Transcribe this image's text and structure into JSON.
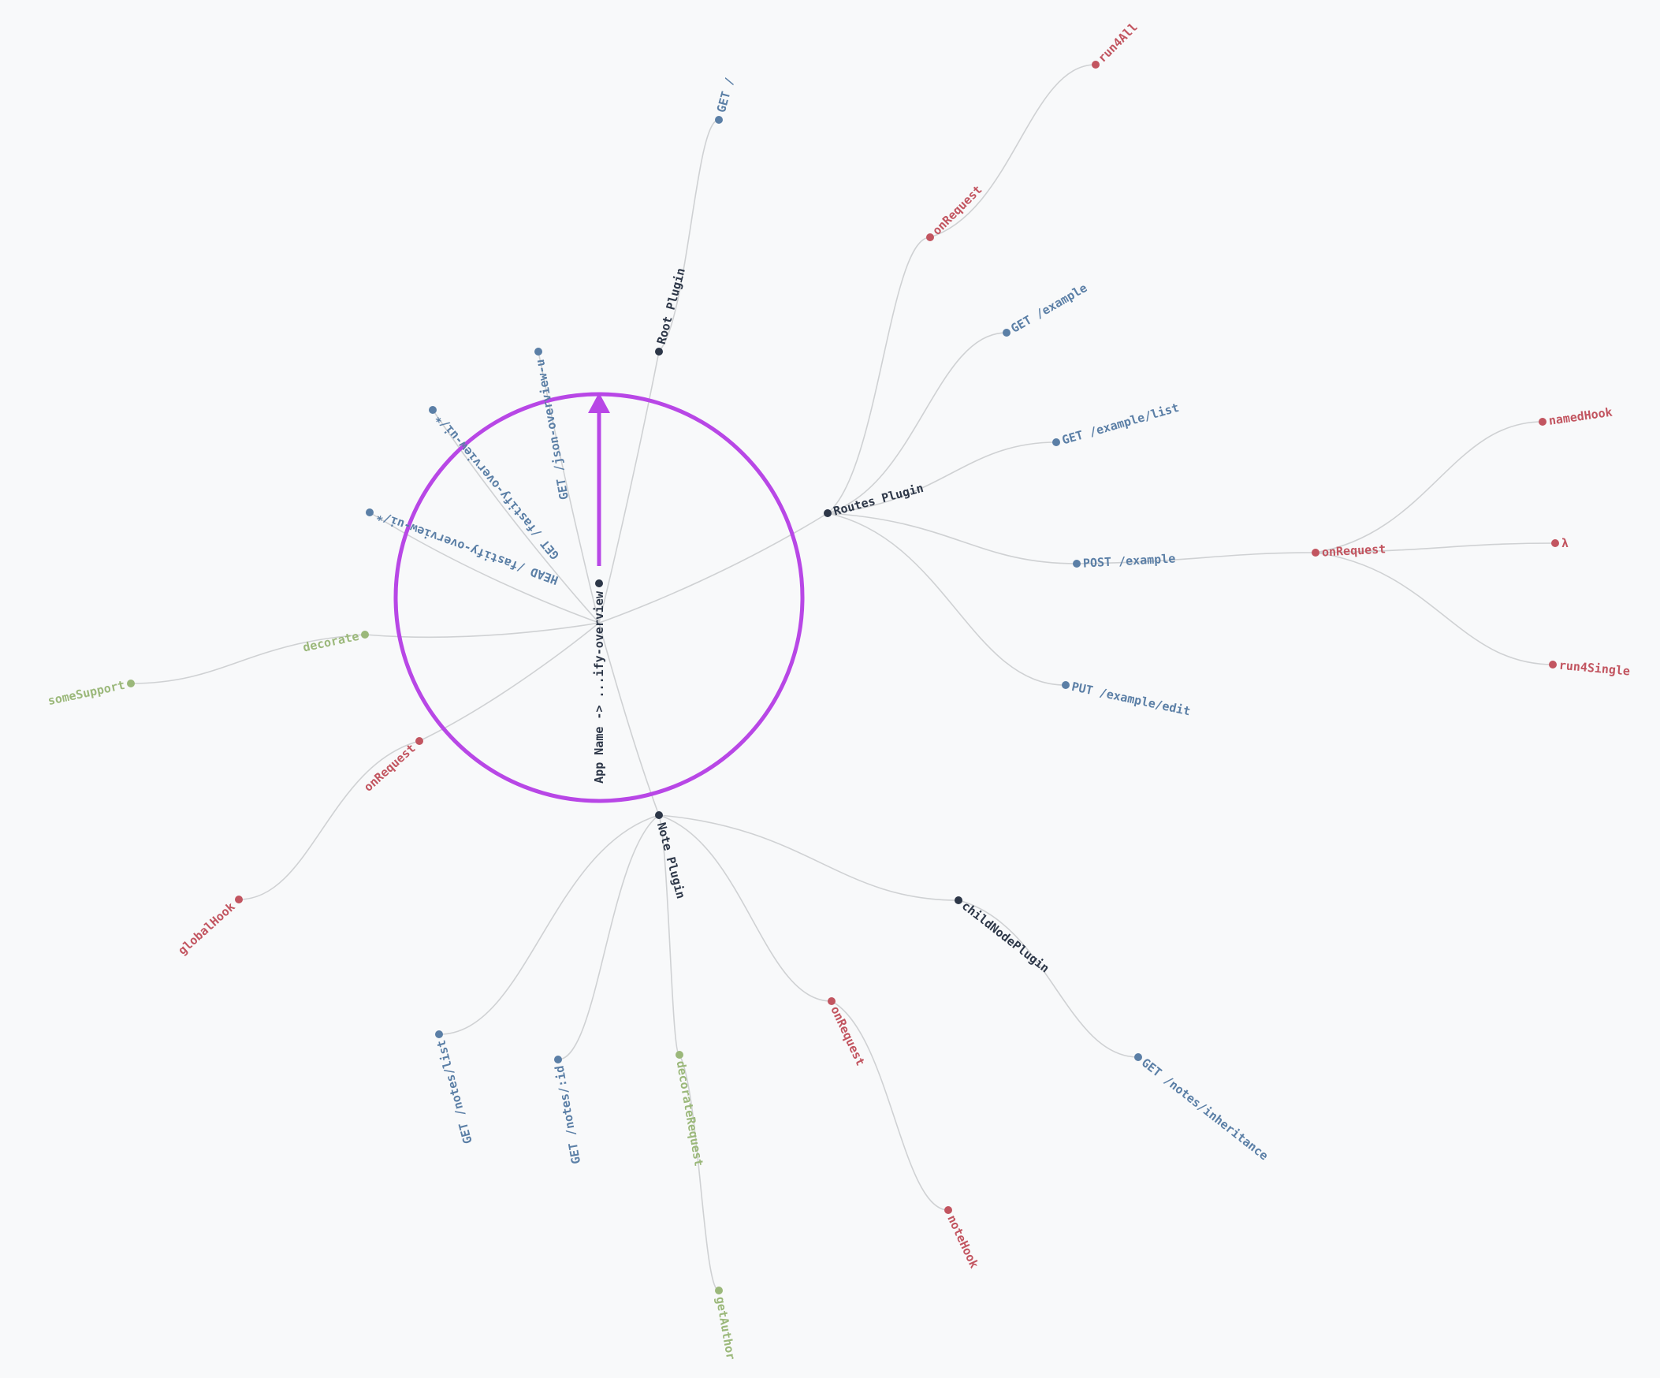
{
  "colors": {
    "plugin": "#2d3748",
    "route": "#5b7fa6",
    "hook": "#c25560",
    "decorator": "#9bb87a",
    "highlight": "#b847e6",
    "link": "#cfd1d3",
    "background": "#f8f9fa"
  },
  "nodes": [
    {
      "id": "root",
      "label": "App Name -> ...ify-overview",
      "kind": "plugin"
    },
    {
      "id": "root-plugin",
      "label": "Root Plugin",
      "kind": "plugin"
    },
    {
      "id": "get-root",
      "label": "GET /",
      "kind": "route"
    },
    {
      "id": "get-json-overview",
      "label": "GET /json-overview-u",
      "kind": "route"
    },
    {
      "id": "get-fastify-overview-ui",
      "label": "GET /fastify-overview-ui/*",
      "kind": "route"
    },
    {
      "id": "head-fastify-overview-ui",
      "label": "HEAD /fastify-overview-ui/*",
      "kind": "route"
    },
    {
      "id": "decorate",
      "label": "decorate",
      "kind": "decorator"
    },
    {
      "id": "some-support",
      "label": "someSupport",
      "kind": "decorator"
    },
    {
      "id": "on-request-root",
      "label": "onRequest",
      "kind": "hook"
    },
    {
      "id": "global-hook",
      "label": "globalHook",
      "kind": "hook"
    },
    {
      "id": "routes-plugin",
      "label": "Routes Plugin",
      "kind": "plugin"
    },
    {
      "id": "on-request-routes",
      "label": "onRequest",
      "kind": "hook"
    },
    {
      "id": "run4all",
      "label": "run4All",
      "kind": "hook"
    },
    {
      "id": "get-example",
      "label": "GET /example",
      "kind": "route"
    },
    {
      "id": "get-example-list",
      "label": "GET /example/list",
      "kind": "route"
    },
    {
      "id": "post-example",
      "label": "POST /example",
      "kind": "route"
    },
    {
      "id": "on-request-post",
      "label": "onRequest",
      "kind": "hook"
    },
    {
      "id": "named-hook",
      "label": "namedHook",
      "kind": "hook"
    },
    {
      "id": "lambda",
      "label": "λ",
      "kind": "hook"
    },
    {
      "id": "run4single",
      "label": "run4Single",
      "kind": "hook"
    },
    {
      "id": "put-example-edit",
      "label": "PUT /example/edit",
      "kind": "route"
    },
    {
      "id": "note-plugin",
      "label": "Note Plugin",
      "kind": "plugin"
    },
    {
      "id": "child-node-plugin",
      "label": "childNodePlugin",
      "kind": "plugin"
    },
    {
      "id": "get-notes-inheritance",
      "label": "GET /notes/inheritance",
      "kind": "route"
    },
    {
      "id": "on-request-note",
      "label": "onRequest",
      "kind": "hook"
    },
    {
      "id": "note-hook",
      "label": "noteHook",
      "kind": "hook"
    },
    {
      "id": "decorate-request",
      "label": "decorateRequest",
      "kind": "decorator"
    },
    {
      "id": "get-author",
      "label": "getAuthor",
      "kind": "decorator"
    },
    {
      "id": "get-notes-id",
      "label": "GET /notes/:id",
      "kind": "route"
    },
    {
      "id": "get-notes-list",
      "label": "GET /notes/list",
      "kind": "route"
    }
  ],
  "links": [
    [
      "root",
      "root-plugin"
    ],
    [
      "root-plugin",
      "get-root"
    ],
    [
      "root",
      "get-json-overview"
    ],
    [
      "root",
      "get-fastify-overview-ui"
    ],
    [
      "root",
      "head-fastify-overview-ui"
    ],
    [
      "root",
      "decorate"
    ],
    [
      "decorate",
      "some-support"
    ],
    [
      "root",
      "on-request-root"
    ],
    [
      "on-request-root",
      "global-hook"
    ],
    [
      "root",
      "routes-plugin"
    ],
    [
      "routes-plugin",
      "on-request-routes"
    ],
    [
      "on-request-routes",
      "run4all"
    ],
    [
      "routes-plugin",
      "get-example"
    ],
    [
      "routes-plugin",
      "get-example-list"
    ],
    [
      "routes-plugin",
      "post-example"
    ],
    [
      "post-example",
      "on-request-post"
    ],
    [
      "on-request-post",
      "named-hook"
    ],
    [
      "on-request-post",
      "lambda"
    ],
    [
      "on-request-post",
      "run4single"
    ],
    [
      "routes-plugin",
      "put-example-edit"
    ],
    [
      "root",
      "note-plugin"
    ],
    [
      "note-plugin",
      "child-node-plugin"
    ],
    [
      "child-node-plugin",
      "get-notes-inheritance"
    ],
    [
      "note-plugin",
      "on-request-note"
    ],
    [
      "on-request-note",
      "note-hook"
    ],
    [
      "note-plugin",
      "decorate-request"
    ],
    [
      "decorate-request",
      "get-author"
    ],
    [
      "note-plugin",
      "get-notes-id"
    ],
    [
      "note-plugin",
      "get-notes-list"
    ]
  ]
}
